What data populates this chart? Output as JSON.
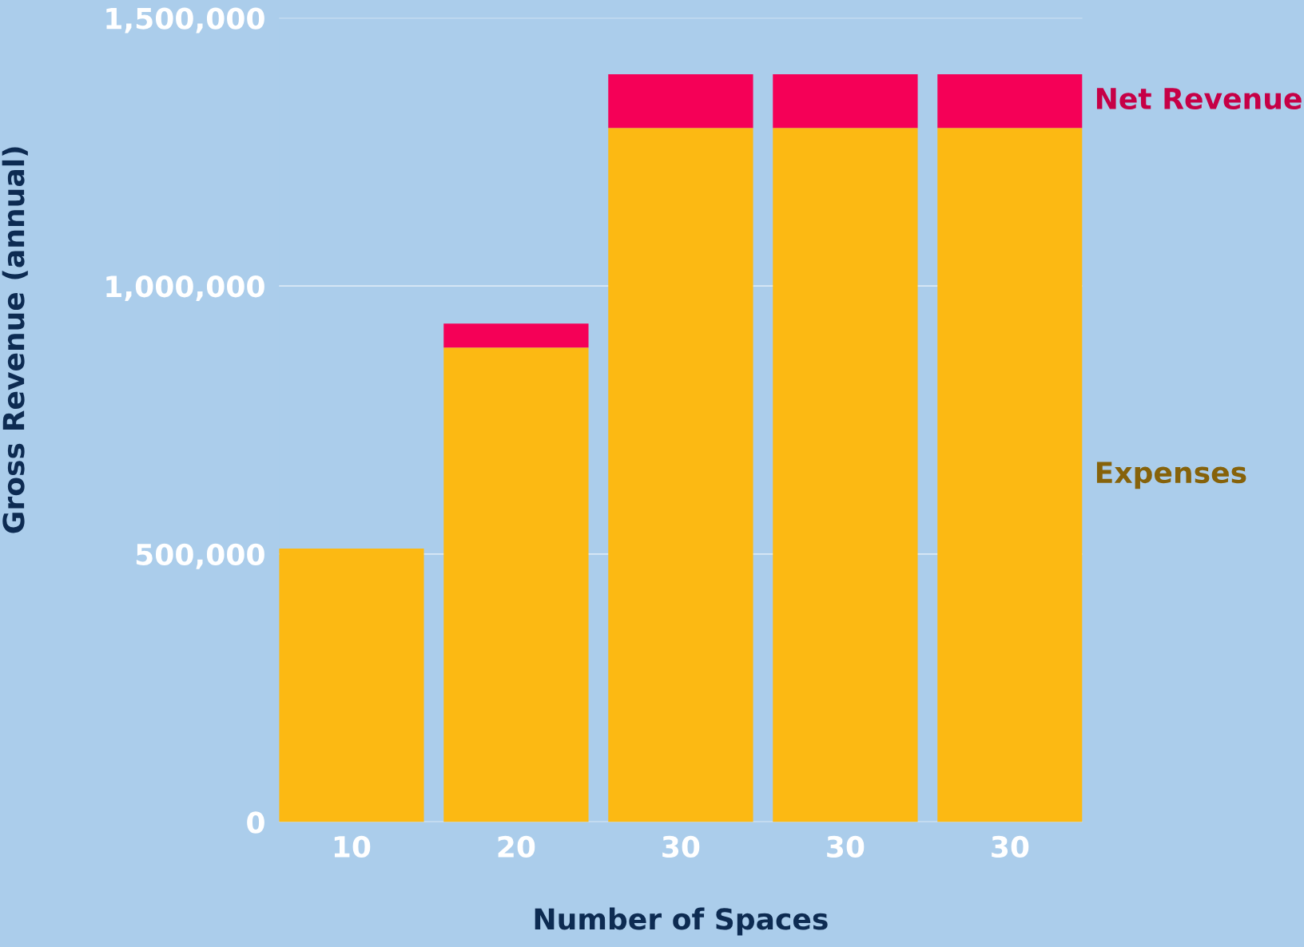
{
  "chart_data": {
    "type": "bar",
    "stacked": true,
    "xlabel": "Number of Spaces",
    "ylabel": "Gross Revenue (annual)",
    "categories": [
      "10",
      "20",
      "30",
      "30",
      "30"
    ],
    "series": [
      {
        "name": "Expenses",
        "color": "#fcb913",
        "values": [
          510000,
          885000,
          1295000,
          1295000,
          1295000
        ]
      },
      {
        "name": "Net Revenue",
        "color": "#f50057",
        "values": [
          0,
          45000,
          100000,
          100000,
          100000
        ]
      }
    ],
    "ylim": [
      0,
      1500000
    ],
    "yticks": [
      {
        "value": 0,
        "label": "0"
      },
      {
        "value": 500000,
        "label": "500,000"
      },
      {
        "value": 1000000,
        "label": "1,000,000"
      },
      {
        "value": 1500000,
        "label": "1,500,000"
      }
    ],
    "grid": "y",
    "legend": "right"
  }
}
